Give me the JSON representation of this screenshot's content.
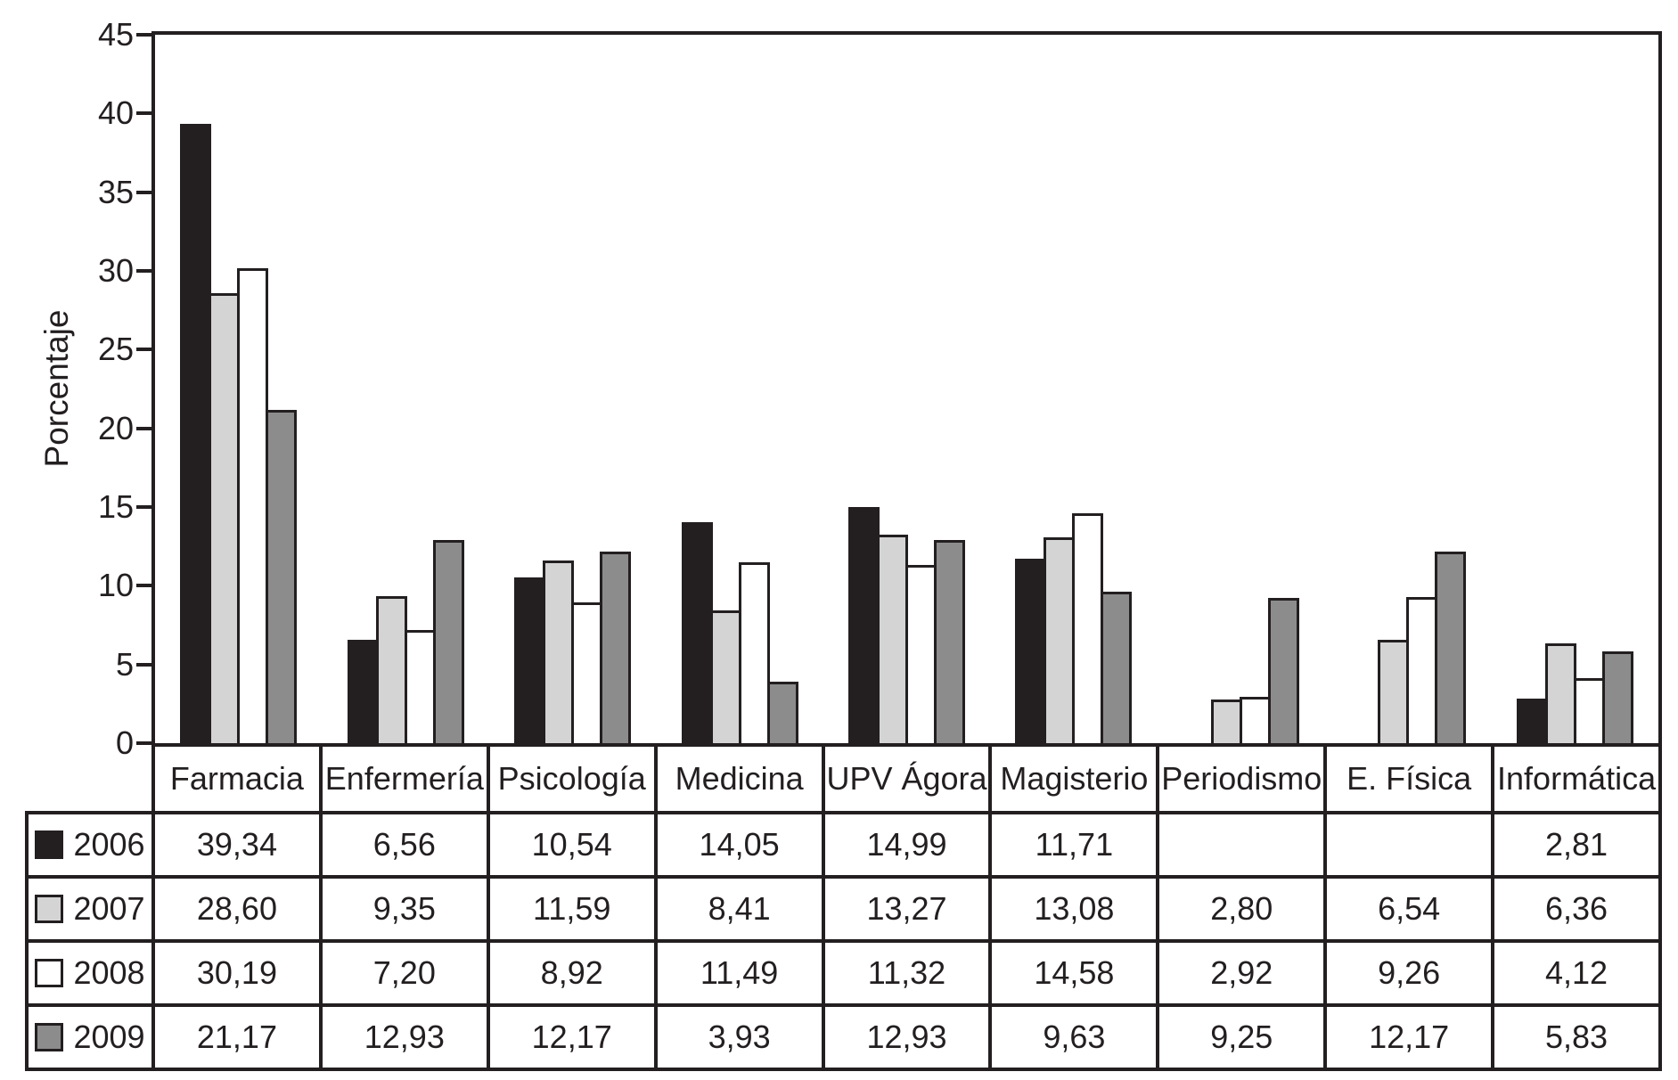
{
  "chart_data": {
    "type": "bar",
    "title": "",
    "ylabel": "Porcentaje",
    "xlabel": "",
    "ylim": [
      0,
      45
    ],
    "yticks": [
      0,
      5,
      10,
      15,
      20,
      25,
      30,
      35,
      40,
      45
    ],
    "grid": false,
    "legend_position": "table-rows-below-chart",
    "axis_color": "#231f20",
    "categories": [
      "Farmacia",
      "Enfermería",
      "Psicología",
      "Medicina",
      "UPV Ágora",
      "Magisterio",
      "Periodismo",
      "E. Física",
      "Informática"
    ],
    "series": [
      {
        "name": "2006",
        "color": "#231f20",
        "values": [
          39.34,
          6.56,
          10.54,
          14.05,
          14.99,
          11.71,
          null,
          null,
          2.81
        ]
      },
      {
        "name": "2007",
        "color": "#d4d4d4",
        "values": [
          28.6,
          9.35,
          11.59,
          8.41,
          13.27,
          13.08,
          2.8,
          6.54,
          6.36
        ]
      },
      {
        "name": "2008",
        "color": "#ffffff",
        "values": [
          30.19,
          7.2,
          8.92,
          11.49,
          11.32,
          14.58,
          2.92,
          9.26,
          4.12
        ]
      },
      {
        "name": "2009",
        "color": "#8c8c8c",
        "values": [
          21.17,
          12.93,
          12.17,
          3.93,
          12.93,
          9.63,
          9.25,
          12.17,
          5.83
        ]
      }
    ],
    "table_display": {
      "decimal_separator": ",",
      "rows": [
        {
          "label": "2006",
          "cells": [
            "39,34",
            "6,56",
            "10,54",
            "14,05",
            "14,99",
            "11,71",
            "",
            "",
            "2,81"
          ]
        },
        {
          "label": "2007",
          "cells": [
            "28,60",
            "9,35",
            "11,59",
            "8,41",
            "13,27",
            "13,08",
            "2,80",
            "6,54",
            "6,36"
          ]
        },
        {
          "label": "2008",
          "cells": [
            "30,19",
            "7,20",
            "8,92",
            "11,49",
            "11,32",
            "14,58",
            "2,92",
            "9,26",
            "4,12"
          ]
        },
        {
          "label": "2009",
          "cells": [
            "21,17",
            "12,93",
            "12,17",
            "3,93",
            "12,93",
            "9,63",
            "9,25",
            "12,17",
            "5,83"
          ]
        }
      ]
    }
  }
}
